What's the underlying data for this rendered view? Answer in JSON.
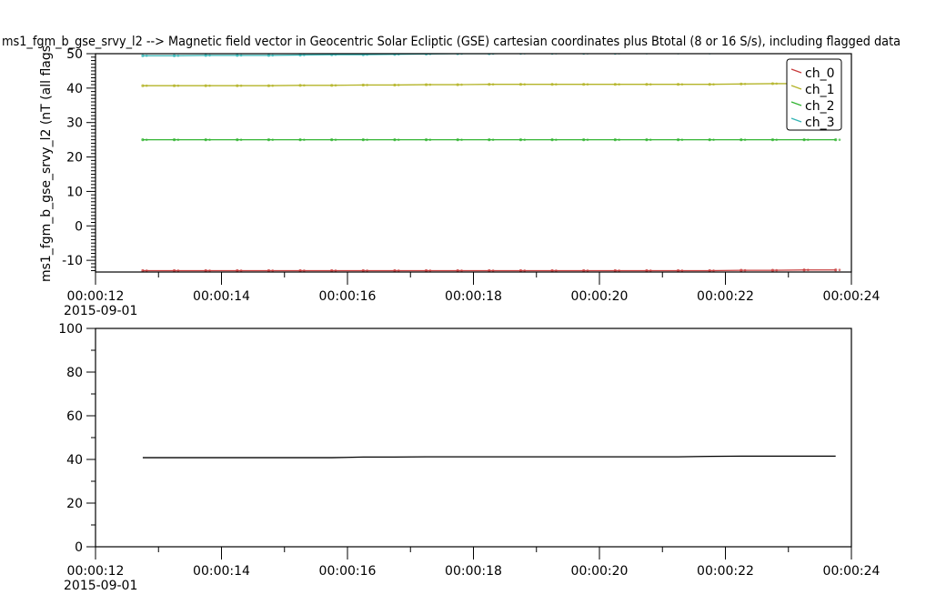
{
  "chart_data": [
    {
      "type": "line",
      "title": "ms1_fgm_b_gse_srvy_l2 --> Magnetic field vector in Geocentric Solar Ecliptic (GSE) cartesian coordinates plus Btotal (8 or 16 S/s), including flagged data",
      "ylabel": "ms1_fgm_b_gse_srvy_l2 (nT (all flags",
      "xlabel": "",
      "date_label": "2015-09-01",
      "xlim": [
        "00:00:12",
        "00:00:24"
      ],
      "x_ticks": [
        "00:00:12",
        "00:00:14",
        "00:00:16",
        "00:00:18",
        "00:00:20",
        "00:00:22",
        "00:00:24"
      ],
      "ylim": [
        -13.4,
        50
      ],
      "y_ticks": [
        "50",
        "40",
        "30",
        "20",
        "10",
        "0",
        "-10"
      ],
      "y_tick_values": [
        50,
        40,
        30,
        20,
        10,
        0,
        -10
      ],
      "legend_position": "top-right",
      "x": [
        "00:00:12.75",
        "00:00:13.25",
        "00:00:13.75",
        "00:00:14.25",
        "00:00:14.75",
        "00:00:15.25",
        "00:00:15.75",
        "00:00:16.25",
        "00:00:16.75",
        "00:00:17.25",
        "00:00:17.75",
        "00:00:18.25",
        "00:00:18.75",
        "00:00:19.25",
        "00:00:19.75",
        "00:00:20.25",
        "00:00:20.75",
        "00:00:21.25",
        "00:00:21.75",
        "00:00:22.25",
        "00:00:22.75",
        "00:00:23.25",
        "00:00:23.75"
      ],
      "series": [
        {
          "name": "ch_0",
          "color": "#c83c3c",
          "values": [
            -13.0,
            -13.0,
            -13.0,
            -13.0,
            -13.0,
            -13.0,
            -13.0,
            -13.0,
            -13.0,
            -13.0,
            -13.0,
            -13.0,
            -13.0,
            -13.0,
            -13.0,
            -13.0,
            -13.0,
            -13.0,
            -13.0,
            -12.9,
            -12.9,
            -12.8,
            -12.8
          ]
        },
        {
          "name": "ch_1",
          "color": "#b4b428",
          "values": [
            40.7,
            40.7,
            40.7,
            40.7,
            40.7,
            40.8,
            40.8,
            40.9,
            40.9,
            41.0,
            41.0,
            41.1,
            41.1,
            41.1,
            41.1,
            41.1,
            41.1,
            41.1,
            41.1,
            41.2,
            41.3,
            41.3,
            41.3
          ]
        },
        {
          "name": "ch_2",
          "color": "#32b432",
          "values": [
            25.0,
            25.0,
            25.0,
            25.0,
            25.0,
            25.0,
            25.0,
            25.0,
            25.0,
            25.0,
            25.0,
            25.0,
            25.0,
            25.0,
            25.0,
            25.0,
            25.0,
            25.0,
            25.0,
            25.0,
            25.0,
            25.0,
            25.0
          ]
        },
        {
          "name": "ch_3",
          "color": "#32b4b4",
          "values": [
            49.4,
            49.4,
            49.5,
            49.5,
            49.5,
            49.6,
            49.7,
            49.7,
            49.8,
            49.9,
            50.0,
            50.0,
            50.1,
            50.1,
            50.1,
            50.1,
            50.2,
            50.2,
            50.2,
            50.3,
            50.4,
            50.4,
            50.4
          ]
        }
      ]
    },
    {
      "type": "line",
      "date_label": "2015-09-01",
      "xlim": [
        "00:00:12",
        "00:00:24"
      ],
      "x_ticks": [
        "00:00:12",
        "00:00:14",
        "00:00:16",
        "00:00:18",
        "00:00:20",
        "00:00:22",
        "00:00:24"
      ],
      "ylim": [
        0,
        100
      ],
      "y_ticks": [
        "100",
        "80",
        "60",
        "40",
        "20",
        "0"
      ],
      "y_tick_values": [
        100,
        80,
        60,
        40,
        20,
        0
      ],
      "x": [
        "00:00:12.75",
        "00:00:13.25",
        "00:00:13.75",
        "00:00:14.25",
        "00:00:14.75",
        "00:00:15.25",
        "00:00:15.75",
        "00:00:16.25",
        "00:00:16.75",
        "00:00:17.25",
        "00:00:17.75",
        "00:00:18.25",
        "00:00:18.75",
        "00:00:19.25",
        "00:00:19.75",
        "00:00:20.25",
        "00:00:20.75",
        "00:00:21.25",
        "00:00:21.75",
        "00:00:22.25",
        "00:00:22.75",
        "00:00:23.25",
        "00:00:23.75"
      ],
      "series": [
        {
          "color": "#000000",
          "values": [
            40.8,
            40.8,
            40.8,
            40.8,
            40.8,
            40.8,
            40.8,
            41.1,
            41.1,
            41.2,
            41.2,
            41.2,
            41.2,
            41.2,
            41.2,
            41.2,
            41.2,
            41.2,
            41.4,
            41.5,
            41.5,
            41.5,
            41.5
          ]
        }
      ]
    }
  ]
}
